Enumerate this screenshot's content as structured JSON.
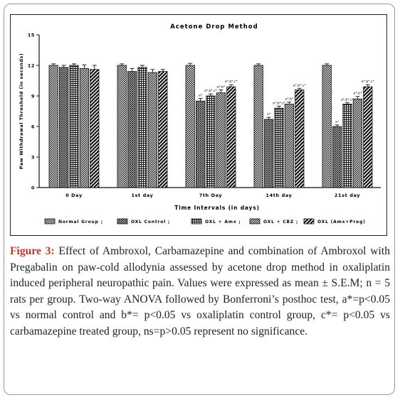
{
  "chart_data": {
    "type": "bar",
    "title": "Acetone Drop Method",
    "xlabel": "Time Intervals (in days)",
    "ylabel": "Paw Withdrawal Threshold (in seconds)",
    "ylim": [
      0,
      15
    ],
    "yticks": [
      "0",
      "3",
      "6",
      "9",
      "12",
      "15"
    ],
    "categories": [
      "0 Day",
      "1st day",
      "7th Day",
      "14th day",
      "21st day"
    ],
    "series": [
      {
        "name": "Normal Group ;",
        "pattern": "checker",
        "values": [
          12.0,
          12.0,
          12.0,
          12.0,
          12.0
        ],
        "errors": [
          0.15,
          0.15,
          0.2,
          0.15,
          0.15
        ]
      },
      {
        "name": "OXL Control ;",
        "pattern": "crosshatch",
        "values": [
          11.8,
          11.4,
          8.5,
          6.7,
          6.0
        ],
        "errors": [
          0.2,
          0.3,
          0.25,
          0.2,
          0.15
        ]
      },
      {
        "name": "OXL + Amx ;",
        "pattern": "grid",
        "values": [
          12.0,
          11.8,
          9.0,
          7.8,
          8.2
        ],
        "errors": [
          0.15,
          0.2,
          0.2,
          0.2,
          0.15
        ]
      },
      {
        "name": "OXL + CBZ ;",
        "pattern": "diagonal",
        "values": [
          11.7,
          11.3,
          9.3,
          8.2,
          8.7
        ],
        "errors": [
          0.35,
          0.3,
          0.3,
          0.2,
          0.25
        ]
      },
      {
        "name": "OXL (Amx+Preg)",
        "pattern": "wide-diagonal",
        "values": [
          11.6,
          11.4,
          9.9,
          9.6,
          9.9
        ],
        "errors": [
          0.4,
          0.2,
          0.2,
          0.15,
          0.2
        ]
      }
    ],
    "annotations": [
      {
        "category": "7th Day",
        "series": "OXL Control ;",
        "text": "a*"
      },
      {
        "category": "7th Day",
        "series": "OXL + Amx ;",
        "text": "a*,b*,c*"
      },
      {
        "category": "7th Day",
        "series": "OXL + CBZ ;",
        "text": "a*,b*"
      },
      {
        "category": "7th Day",
        "series": "OXL (Amx+Preg)",
        "text": "a*,b*,c*"
      },
      {
        "category": "14th day",
        "series": "OXL Control ;",
        "text": "a*"
      },
      {
        "category": "14th day",
        "series": "OXL + Amx ;",
        "text": "a*,b*,c*"
      },
      {
        "category": "14th day",
        "series": "OXL + CBZ ;",
        "text": "a*,b*"
      },
      {
        "category": "14th day",
        "series": "OXL (Amx+Preg)",
        "text": "a*,b*,c*"
      },
      {
        "category": "21st day",
        "series": "OXL Control ;",
        "text": "a*"
      },
      {
        "category": "21st day",
        "series": "OXL + Amx ;",
        "text": "a*,b*,c*"
      },
      {
        "category": "21st day",
        "series": "OXL + CBZ ;",
        "text": "a*,b*"
      },
      {
        "category": "21st day",
        "series": "OXL (Amx+Preg)",
        "text": "a*,b*,c*"
      }
    ],
    "legend_position": "bottom",
    "grid": false
  },
  "caption": {
    "label": "Figure 3:",
    "text": " Effect of Ambroxol, Carbamazepine and combination of Ambroxol with Pregabalin on paw-cold allodynia assessed by acetone drop method in oxaliplatin induced peripheral neuropathic pain. Values were expressed as mean ± S.E.M; n = 5 rats per group. Two-way ANOVA followed by Bonferroni’s posthoc test, a*=p<0.05 vs normal control and b*= p<0.05 vs oxaliplatin control group, c*= p<0.05 vs carbamazepine treated group, ns=p>0.05 represent no significance."
  }
}
